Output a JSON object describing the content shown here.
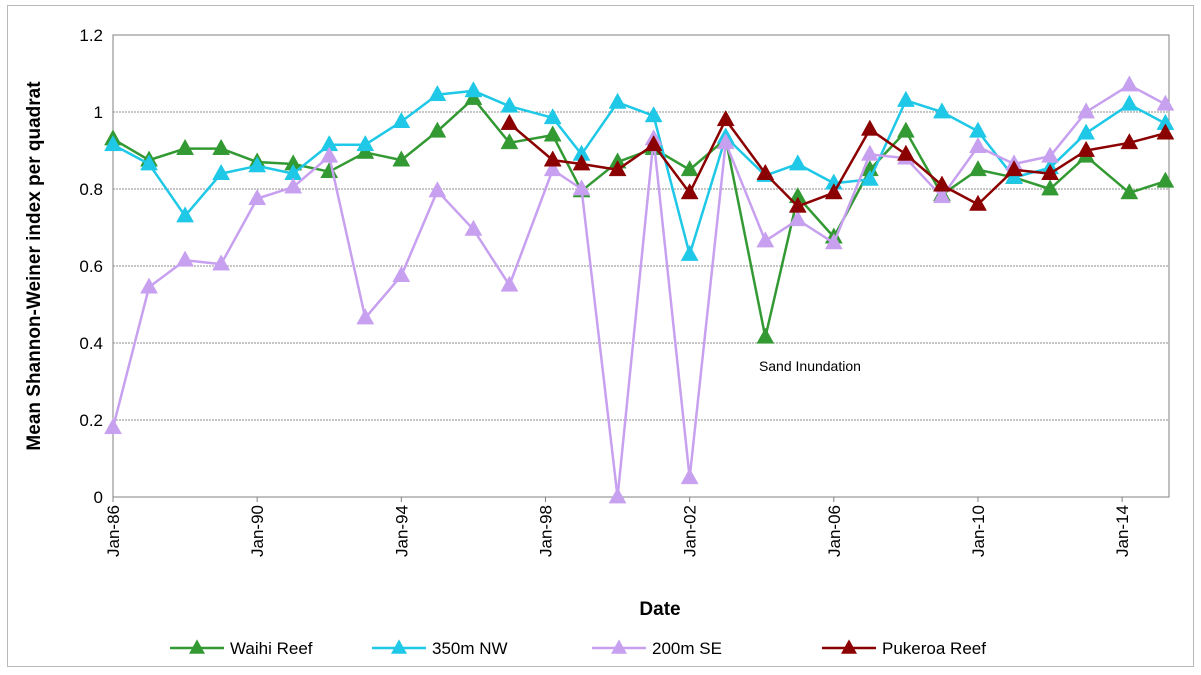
{
  "chart_data": {
    "type": "line",
    "xlabel": "Date",
    "ylabel": "Mean Shannon-Weiner index per quadrat",
    "ylim": [
      0,
      1.2
    ],
    "yticks": [
      "0",
      "0.2",
      "0.4",
      "0.6",
      "0.8",
      "1",
      "1.2"
    ],
    "xlim": [
      1986.0,
      2015.3
    ],
    "xticks": [
      {
        "label": "Jan-86",
        "value": 1986
      },
      {
        "label": "Jan-90",
        "value": 1990
      },
      {
        "label": "Jan-94",
        "value": 1994
      },
      {
        "label": "Jan-98",
        "value": 1998
      },
      {
        "label": "Jan-02",
        "value": 2002
      },
      {
        "label": "Jan-06",
        "value": 2006
      },
      {
        "label": "Jan-10",
        "value": 2010
      },
      {
        "label": "Jan-14",
        "value": 2014
      }
    ],
    "grid": "horizontal",
    "legend_position": "bottom",
    "annotation": {
      "text": "Sand Inundation",
      "x": 2004.2,
      "y": 0.34
    },
    "series": [
      {
        "name": "Waihi Reef",
        "color": "#339933",
        "points": [
          [
            1986.0,
            0.93
          ],
          [
            1987.0,
            0.875
          ],
          [
            1988.0,
            0.905
          ],
          [
            1989.0,
            0.905
          ],
          [
            1990.0,
            0.87
          ],
          [
            1991.0,
            0.865
          ],
          [
            1992.0,
            0.845
          ],
          [
            1993.0,
            0.895
          ],
          [
            1994.0,
            0.875
          ],
          [
            1995.0,
            0.95
          ],
          [
            1996.0,
            1.035
          ],
          [
            1997.0,
            0.92
          ],
          [
            1998.2,
            0.94
          ],
          [
            1999.0,
            0.795
          ],
          [
            2000.0,
            0.87
          ],
          [
            2001.0,
            0.905
          ],
          [
            2002.0,
            0.85
          ],
          [
            2003.0,
            0.93
          ],
          [
            2004.1,
            0.415
          ],
          [
            2005.0,
            0.78
          ],
          [
            2006.0,
            0.675
          ],
          [
            2007.0,
            0.85
          ],
          [
            2008.0,
            0.95
          ],
          [
            2009.0,
            0.785
          ],
          [
            2010.0,
            0.85
          ],
          [
            2011.0,
            0.83
          ],
          [
            2012.0,
            0.8
          ],
          [
            2013.0,
            0.885
          ],
          [
            2014.2,
            0.79
          ],
          [
            2015.2,
            0.82
          ]
        ]
      },
      {
        "name": "350m NW",
        "color": "#1ec8e6",
        "points": [
          [
            1986.0,
            0.915
          ],
          [
            1987.0,
            0.865
          ],
          [
            1988.0,
            0.73
          ],
          [
            1989.0,
            0.84
          ],
          [
            1990.0,
            0.86
          ],
          [
            1991.0,
            0.84
          ],
          [
            1992.0,
            0.915
          ],
          [
            1993.0,
            0.915
          ],
          [
            1994.0,
            0.975
          ],
          [
            1995.0,
            1.045
          ],
          [
            1996.0,
            1.055
          ],
          [
            1997.0,
            1.015
          ],
          [
            1998.2,
            0.985
          ],
          [
            1999.0,
            0.89
          ],
          [
            2000.0,
            1.025
          ],
          [
            2001.0,
            0.99
          ],
          [
            2002.0,
            0.63
          ],
          [
            2003.0,
            0.935
          ],
          [
            2004.1,
            0.835
          ],
          [
            2005.0,
            0.865
          ],
          [
            2006.0,
            0.815
          ],
          [
            2007.0,
            0.825
          ],
          [
            2008.0,
            1.03
          ],
          [
            2009.0,
            1.0
          ],
          [
            2010.0,
            0.95
          ],
          [
            2011.0,
            0.83
          ],
          [
            2012.0,
            0.855
          ],
          [
            2013.0,
            0.945
          ],
          [
            2014.2,
            1.02
          ],
          [
            2015.2,
            0.97
          ]
        ]
      },
      {
        "name": "200m SE",
        "color": "#c8a0f0",
        "points": [
          [
            1986.0,
            0.18
          ],
          [
            1987.0,
            0.545
          ],
          [
            1988.0,
            0.615
          ],
          [
            1989.0,
            0.605
          ],
          [
            1990.0,
            0.775
          ],
          [
            1991.0,
            0.805
          ],
          [
            1992.0,
            0.885
          ],
          [
            1993.0,
            0.465
          ],
          [
            1994.0,
            0.575
          ],
          [
            1995.0,
            0.795
          ],
          [
            1996.0,
            0.695
          ],
          [
            1997.0,
            0.55
          ],
          [
            1998.2,
            0.85
          ],
          [
            1999.0,
            0.8
          ],
          [
            2000.0,
            0.0
          ],
          [
            2001.0,
            0.93
          ],
          [
            2002.0,
            0.05
          ],
          [
            2003.0,
            0.92
          ],
          [
            2004.1,
            0.665
          ],
          [
            2005.0,
            0.72
          ],
          [
            2006.0,
            0.66
          ],
          [
            2007.0,
            0.89
          ],
          [
            2008.0,
            0.88
          ],
          [
            2009.0,
            0.78
          ],
          [
            2010.0,
            0.91
          ],
          [
            2011.0,
            0.865
          ],
          [
            2012.0,
            0.885
          ],
          [
            2013.0,
            1.0
          ],
          [
            2014.2,
            1.07
          ],
          [
            2015.2,
            1.02
          ]
        ]
      },
      {
        "name": "Pukeroa Reef",
        "color": "#8b0000",
        "points": [
          [
            1997.0,
            0.97
          ],
          [
            1998.2,
            0.875
          ],
          [
            1999.0,
            0.865
          ],
          [
            2000.0,
            0.85
          ],
          [
            2001.0,
            0.915
          ],
          [
            2002.0,
            0.79
          ],
          [
            2003.0,
            0.98
          ],
          [
            2004.1,
            0.84
          ],
          [
            2005.0,
            0.755
          ],
          [
            2006.0,
            0.79
          ],
          [
            2007.0,
            0.955
          ],
          [
            2008.0,
            0.89
          ],
          [
            2009.0,
            0.81
          ],
          [
            2010.0,
            0.76
          ],
          [
            2011.0,
            0.85
          ],
          [
            2012.0,
            0.84
          ],
          [
            2013.0,
            0.9
          ],
          [
            2014.2,
            0.92
          ],
          [
            2015.2,
            0.945
          ]
        ]
      }
    ]
  }
}
